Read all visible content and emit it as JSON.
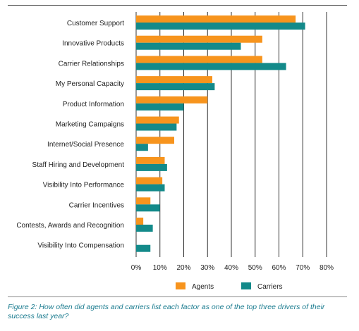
{
  "chart_data": {
    "type": "bar",
    "orientation": "horizontal",
    "categories": [
      "Customer Support",
      "Innovative Products",
      "Carrier Relationships",
      "My Personal Capacity",
      "Product Information",
      "Marketing Campaigns",
      "Internet/Social Presence",
      "Staff Hiring and Development",
      "Visibility Into Performance",
      "Carrier Incentives",
      "Contests, Awards and Recognition",
      "Visibility Into Compensation"
    ],
    "series": [
      {
        "name": "Agents",
        "color": "#f7941d",
        "values": [
          67,
          53,
          53,
          32,
          30,
          18,
          16,
          12,
          11,
          6,
          3,
          0
        ]
      },
      {
        "name": "Carriers",
        "color": "#138a8a",
        "values": [
          71,
          44,
          63,
          33,
          20,
          17,
          5,
          13,
          12,
          10,
          7,
          6
        ]
      }
    ],
    "xlim": [
      0,
      80
    ],
    "x_ticks": [
      "0%",
      "10%",
      "20%",
      "30%",
      "40%",
      "50%",
      "60%",
      "70%",
      "80%"
    ],
    "grid": "vertical",
    "legend_position": "bottom"
  },
  "caption": "Figure 2: How often did agents and carriers list each factor as one of the top three drivers of their success last year?"
}
